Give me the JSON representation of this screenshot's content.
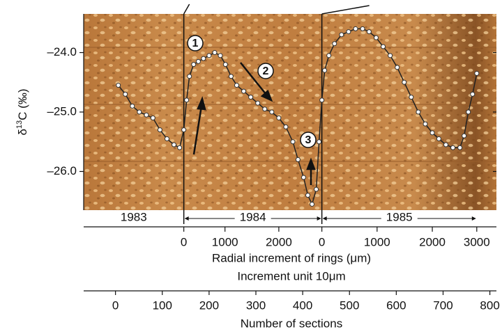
{
  "chart_data": {
    "type": "scatter",
    "ylabel": {
      "prefix": "δ",
      "sup": "13",
      "suffix": "C (‰)"
    },
    "x2label": {
      "line1": "Radial increment of rings (μm)",
      "line2": "Increment unit 10μm"
    },
    "xlabel": "Number of sections",
    "years": [
      "1983",
      "1984",
      "1985"
    ],
    "annotations": [
      "1",
      "2",
      "3"
    ],
    "point_color": "#ffffff",
    "line_color": "#222222",
    "x": [
      6,
      21,
      36,
      51,
      66,
      80,
      95,
      110,
      125,
      137,
      146,
      152,
      158,
      167,
      177,
      188,
      200,
      212,
      224,
      235,
      247,
      259,
      274,
      289,
      304,
      319,
      334,
      349,
      364,
      379,
      390,
      402,
      411,
      420,
      429,
      435,
      441,
      447,
      456,
      468,
      483,
      498,
      513,
      528,
      542,
      557,
      572,
      587,
      602,
      617,
      632,
      647,
      662,
      677,
      691,
      706,
      721,
      736,
      745,
      754,
      763,
      772
    ],
    "values": [
      -24.55,
      -24.7,
      -24.9,
      -25.0,
      -25.05,
      -25.1,
      -25.3,
      -25.45,
      -25.55,
      -25.6,
      -25.3,
      -24.8,
      -24.4,
      -24.2,
      -24.15,
      -24.1,
      -24.05,
      -24.0,
      -24.05,
      -24.2,
      -24.4,
      -24.55,
      -24.65,
      -24.75,
      -24.85,
      -24.95,
      -25.0,
      -25.1,
      -25.25,
      -25.5,
      -25.8,
      -26.1,
      -26.4,
      -26.55,
      -26.3,
      -25.5,
      -24.8,
      -24.3,
      -24.05,
      -23.85,
      -23.7,
      -23.65,
      -23.6,
      -23.6,
      -23.65,
      -23.75,
      -23.9,
      -24.05,
      -24.25,
      -24.5,
      -24.75,
      -25.0,
      -25.2,
      -25.35,
      -25.45,
      -25.55,
      -25.6,
      -25.6,
      -25.4,
      -25.0,
      -24.7,
      -24.35
    ],
    "xlim": [
      -68,
      814
    ],
    "xticks": [
      0,
      100,
      200,
      300,
      400,
      500,
      600,
      700,
      800
    ],
    "x2ticks": [
      {
        "value": 146,
        "label": "0"
      },
      {
        "value": 234,
        "label": "1000"
      },
      {
        "value": 349,
        "label": "2000"
      },
      {
        "value": 441,
        "label": "0"
      },
      {
        "value": 559,
        "label": "1000"
      },
      {
        "value": 677,
        "label": "2000"
      },
      {
        "value": 772,
        "label": "3000"
      }
    ],
    "ylim": [
      -26.65,
      -23.35
    ],
    "yticks": [
      {
        "value": -24.0,
        "label": "–24.0"
      },
      {
        "value": -25.0,
        "label": "–25.0"
      },
      {
        "value": -26.0,
        "label": "–26.0"
      }
    ]
  }
}
